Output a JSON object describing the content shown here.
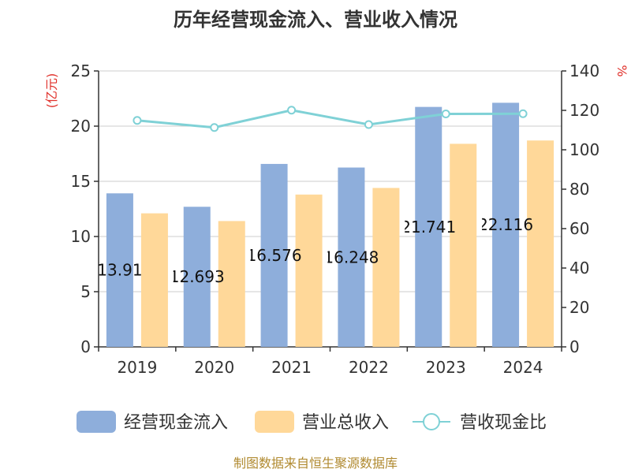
{
  "chart_data": {
    "type": "bar",
    "title": "历年经营现金流入、营业收入情况",
    "categories": [
      "2019",
      "2020",
      "2021",
      "2022",
      "2023",
      "2024"
    ],
    "series": [
      {
        "name": "经营现金流入",
        "kind": "bar",
        "axis": "left",
        "color": "#8eaedb",
        "values": [
          13.91,
          12.693,
          16.576,
          16.248,
          21.741,
          22.116
        ],
        "labels": [
          "13.91",
          "12.693",
          "16.576",
          "16.248",
          "21.741",
          "22.116"
        ]
      },
      {
        "name": "营业总收入",
        "kind": "bar",
        "axis": "left",
        "color": "#ffd899",
        "values": [
          12.1,
          11.4,
          13.8,
          14.4,
          18.4,
          18.7
        ]
      },
      {
        "name": "营收现金比",
        "kind": "line",
        "axis": "right",
        "color": "#7fd1d6",
        "values": [
          114.9,
          111.3,
          120.1,
          112.8,
          118.2,
          118.3
        ]
      }
    ],
    "y_left": {
      "unit": "(亿元)",
      "min": 0,
      "max": 25,
      "ticks": [
        0,
        5,
        10,
        15,
        20,
        25
      ]
    },
    "y_right": {
      "unit": "%",
      "min": 0,
      "max": 140,
      "ticks": [
        0,
        20,
        40,
        60,
        80,
        100,
        120,
        140
      ]
    },
    "grid": true,
    "legend_position": "bottom"
  },
  "source": "制图数据来自恒生聚源数据库"
}
